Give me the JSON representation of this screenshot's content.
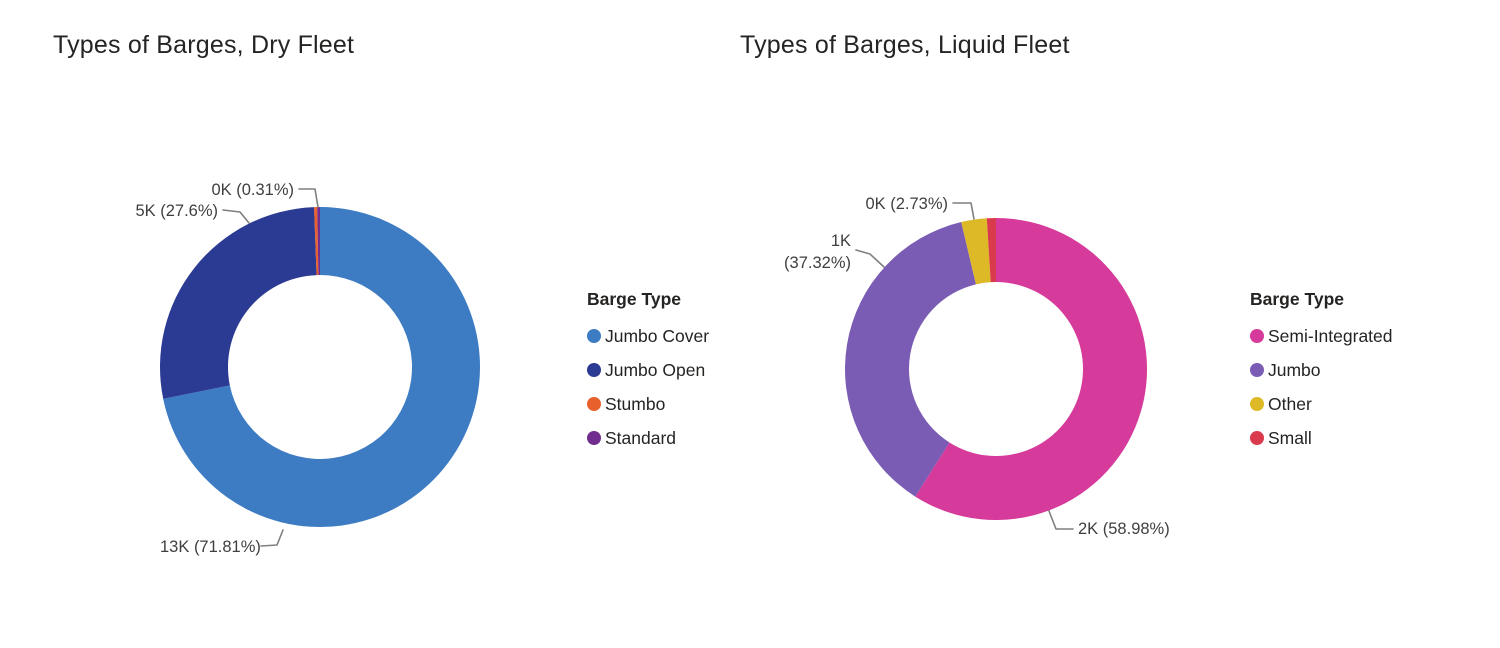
{
  "chart_data": [
    {
      "type": "pie",
      "subtype": "donut",
      "title": "Types of Barges, Dry Fleet",
      "legend": {
        "title": "Barge Type",
        "position": "right"
      },
      "series": [
        {
          "name": "Jumbo Cover",
          "value": "13K",
          "percent": 71.81,
          "color": "#3D7BC2"
        },
        {
          "name": "Jumbo Open",
          "value": "5K",
          "percent": 27.6,
          "color": "#2B3A92"
        },
        {
          "name": "Stumbo",
          "value": "0K",
          "percent": 0.31,
          "color": "#E8612C"
        },
        {
          "name": "Standard",
          "percent": 0.28,
          "color": "#722E8E"
        }
      ],
      "labels": [
        {
          "series": "Stumbo",
          "text": "0K (0.31%)"
        },
        {
          "series": "Jumbo Open",
          "text": "5K (27.6%)"
        },
        {
          "series": "Jumbo Cover",
          "text": "13K (71.81%)"
        }
      ]
    },
    {
      "type": "pie",
      "subtype": "donut",
      "title": "Types of Barges, Liquid Fleet",
      "legend": {
        "title": "Barge Type",
        "position": "right"
      },
      "series": [
        {
          "name": "Semi-Integrated",
          "value": "2K",
          "percent": 58.98,
          "color": "#D63A9B"
        },
        {
          "name": "Jumbo",
          "value": "1K",
          "percent": 37.32,
          "color": "#7A5CB5"
        },
        {
          "name": "Other",
          "value": "0K",
          "percent": 2.73,
          "color": "#DDB927"
        },
        {
          "name": "Small",
          "percent": 0.97,
          "color": "#D93A4C"
        }
      ],
      "labels": [
        {
          "series": "Other",
          "text": "0K (2.73%)"
        },
        {
          "series": "Jumbo",
          "lines": [
            "1K",
            "(37.32%)"
          ]
        },
        {
          "series": "Semi-Integrated",
          "text": "2K (58.98%)"
        }
      ]
    }
  ]
}
